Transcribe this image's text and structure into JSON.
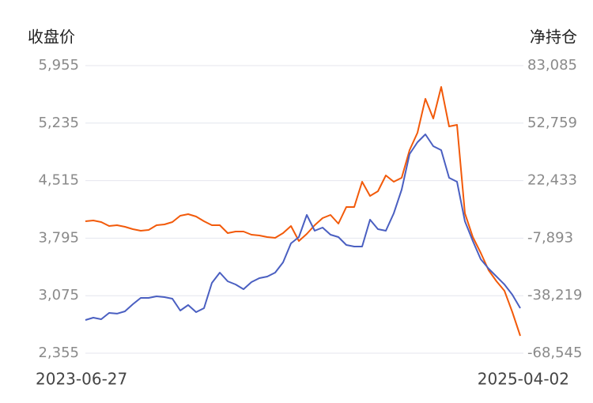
{
  "chart_data": {
    "type": "line",
    "y_axis_title": "收盘价",
    "y2_axis_title": "净持仓",
    "categories": [
      "2023-06-27",
      null,
      null,
      null,
      null,
      null,
      null,
      null,
      null,
      null,
      null,
      null,
      null,
      null,
      null,
      null,
      null,
      null,
      null,
      null,
      null,
      null,
      null,
      null,
      null,
      null,
      null,
      null,
      null,
      null,
      null,
      null,
      null,
      null,
      null,
      null,
      null,
      null,
      null,
      null,
      null,
      null,
      null,
      null,
      null,
      null,
      null,
      null,
      null,
      null,
      null,
      null,
      null,
      null,
      null,
      "2025-04-02"
    ],
    "series": [
      {
        "name": "收盘价",
        "color": "#4a5fc1",
        "axis": "y",
        "values": [
          2770,
          2800,
          2780,
          2859,
          2850,
          2879,
          2968,
          3047,
          3047,
          3067,
          3057,
          3037,
          2889,
          2958,
          2869,
          2919,
          3235,
          3364,
          3255,
          3215,
          3156,
          3245,
          3295,
          3314,
          3364,
          3492,
          3730,
          3809,
          4086,
          3888,
          3928,
          3839,
          3809,
          3710,
          3690,
          3690,
          4026,
          3908,
          3888,
          4106,
          4402,
          4847,
          4996,
          5095,
          4946,
          4897,
          4551,
          4501,
          4007,
          3759,
          3532,
          3413,
          3314,
          3215,
          3087,
          2919
        ]
      },
      {
        "name": "净持仓",
        "color": "#f25a0a",
        "axis": "y2",
        "values": [
          1021,
          1437,
          604,
          -1479,
          -1062,
          -1895,
          -3145,
          -3978,
          -3562,
          -1062,
          -646,
          604,
          3937,
          4770,
          3520,
          1021,
          -1062,
          -1062,
          -5228,
          -4395,
          -4395,
          -6061,
          -6478,
          -7311,
          -7727,
          -5228,
          -1479,
          -9394,
          -5645,
          -1062,
          2687,
          4353,
          -229,
          8519,
          8519,
          21849,
          14351,
          16850,
          25182,
          21849,
          23932,
          38512,
          47677,
          65589,
          55175,
          71838,
          51009,
          51842,
          5186,
          -7311,
          -15642,
          -24807,
          -30639,
          -35637,
          -46885,
          -59382
        ]
      }
    ],
    "ylim": [
      2355,
      5955
    ],
    "yticks": [
      {
        "value": 2355,
        "label": "2,355"
      },
      {
        "value": 3075,
        "label": "3,075"
      },
      {
        "value": 3795,
        "label": "3,795"
      },
      {
        "value": 4515,
        "label": "4,515"
      },
      {
        "value": 5235,
        "label": "5,235"
      },
      {
        "value": 5955,
        "label": "5,955"
      }
    ],
    "y2lim": [
      -68545,
      83085
    ],
    "y2ticks": [
      {
        "value": -68545,
        "label": "-68,545"
      },
      {
        "value": -38219,
        "label": "-38,219"
      },
      {
        "value": -7893,
        "label": "-7,893"
      },
      {
        "value": 22433,
        "label": "22,433"
      },
      {
        "value": 52759,
        "label": "52,759"
      },
      {
        "value": 83085,
        "label": "83,085"
      }
    ],
    "grid": true
  }
}
